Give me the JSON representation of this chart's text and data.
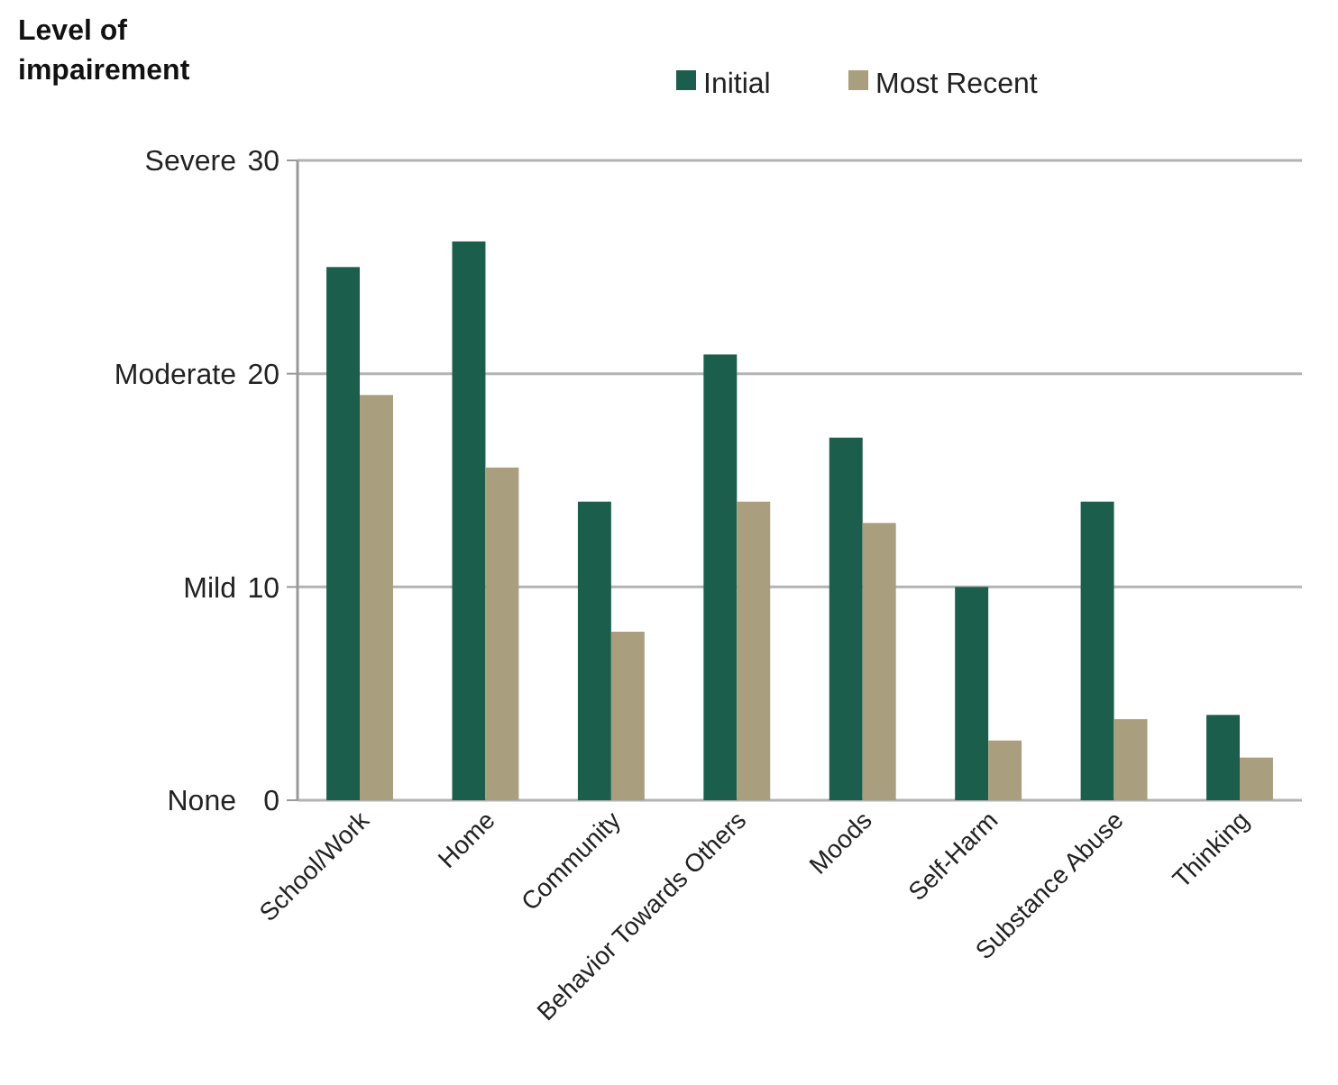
{
  "chart_data": {
    "type": "bar",
    "ylabel": "Level of impairement",
    "categories": [
      "School/Work",
      "Home",
      "Community",
      "Behavior Towards Others",
      "Moods",
      "Self-Harm",
      "Substance Abuse",
      "Thinking"
    ],
    "series": [
      {
        "name": "Initial",
        "color": "#1b5e4b",
        "values": [
          25,
          26.2,
          14,
          20.9,
          17,
          10,
          14,
          4
        ]
      },
      {
        "name": "Most Recent",
        "color": "#a99e7e",
        "values": [
          19,
          15.6,
          7.9,
          14,
          13,
          2.8,
          3.8,
          2
        ]
      }
    ],
    "ylim": [
      0,
      30
    ],
    "yticks": [
      0,
      10,
      20,
      30
    ],
    "annotations": [
      "None",
      "Mild",
      "Moderate",
      "Severe"
    ],
    "grid": "y",
    "legend": "top"
  }
}
